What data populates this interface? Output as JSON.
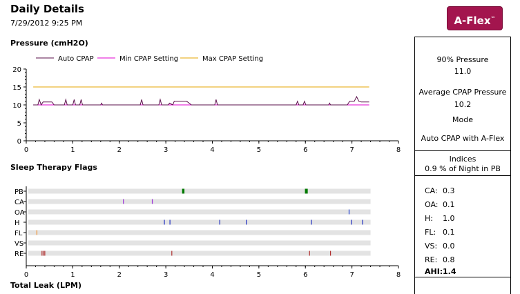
{
  "header": {
    "title": "Daily Details",
    "datetime": "7/29/2012 9:25 PM",
    "logo_text": "A-Flex",
    "logo_mark": "™",
    "logo_color": "#a3154e"
  },
  "sections": {
    "pressure_label": "Pressure (cmH2O)",
    "flags_label": "Sleep Therapy Flags",
    "leak_label": "Total Leak (LPM)"
  },
  "right_panel": {
    "p90_label": "90% Pressure",
    "p90_value": "11.0",
    "avg_label": "Average CPAP Pressure",
    "avg_value": "10.2",
    "mode_label": "Mode",
    "mode_value": "Auto CPAP with A-Flex",
    "indices_label": "Indices",
    "pb_text": "0.9 % of Night in PB",
    "indices": [
      {
        "label": "CA:",
        "value": "0.3"
      },
      {
        "label": "OA:",
        "value": "0.1"
      },
      {
        "label": "H:",
        "value": "1.0"
      },
      {
        "label": "FL:",
        "value": "0.1"
      },
      {
        "label": "VS:",
        "value": "0.0"
      },
      {
        "label": "RE:",
        "value": "0.8"
      }
    ],
    "ahi_label": "AHI:",
    "ahi_value": "1.4"
  },
  "chart_data": [
    {
      "type": "line",
      "title": "Pressure (cmH2O)",
      "xlim": [
        0,
        8
      ],
      "ylim": [
        0,
        20
      ],
      "x_ticks": [
        "0",
        "1",
        "2",
        "3",
        "4",
        "5",
        "6",
        "7",
        "8"
      ],
      "y_ticks": [
        "0",
        "5",
        "10",
        "15",
        "20"
      ],
      "legend_position": "top-left",
      "series": [
        {
          "name": "Auto CPAP",
          "color": "#5a0f4a",
          "points": [
            [
              0.15,
              10
            ],
            [
              0.25,
              10
            ],
            [
              0.28,
              11.5
            ],
            [
              0.32,
              10
            ],
            [
              0.36,
              10.8
            ],
            [
              0.55,
              10.8
            ],
            [
              0.6,
              10
            ],
            [
              0.82,
              10
            ],
            [
              0.85,
              11.5
            ],
            [
              0.88,
              10
            ],
            [
              1.0,
              10
            ],
            [
              1.03,
              11.5
            ],
            [
              1.06,
              10
            ],
            [
              1.15,
              10
            ],
            [
              1.18,
              11.5
            ],
            [
              1.21,
              10
            ],
            [
              1.6,
              10
            ],
            [
              1.62,
              10.5
            ],
            [
              1.64,
              10
            ],
            [
              2.45,
              10
            ],
            [
              2.48,
              11.5
            ],
            [
              2.51,
              10
            ],
            [
              2.85,
              10
            ],
            [
              2.88,
              11.5
            ],
            [
              2.91,
              10
            ],
            [
              3.05,
              10
            ],
            [
              3.08,
              10.5
            ],
            [
              3.15,
              10
            ],
            [
              3.18,
              11
            ],
            [
              3.45,
              11
            ],
            [
              3.55,
              10
            ],
            [
              4.05,
              10
            ],
            [
              4.08,
              11.5
            ],
            [
              4.11,
              10
            ],
            [
              5.8,
              10
            ],
            [
              5.83,
              11
            ],
            [
              5.86,
              10
            ],
            [
              5.95,
              10
            ],
            [
              5.98,
              11
            ],
            [
              6.01,
              10
            ],
            [
              6.5,
              10
            ],
            [
              6.52,
              10.5
            ],
            [
              6.54,
              10
            ],
            [
              6.9,
              10
            ],
            [
              6.95,
              11
            ],
            [
              7.05,
              11
            ],
            [
              7.1,
              12.3
            ],
            [
              7.15,
              11
            ],
            [
              7.2,
              10.8
            ],
            [
              7.37,
              10.8
            ]
          ]
        },
        {
          "name": "Min CPAP Setting",
          "color": "#e000d0",
          "points": [
            [
              0.15,
              10
            ],
            [
              7.37,
              10
            ]
          ]
        },
        {
          "name": "Max CPAP Setting",
          "color": "#e6a400",
          "points": [
            [
              0.15,
              15
            ],
            [
              7.37,
              15
            ]
          ]
        }
      ]
    },
    {
      "type": "scatter",
      "title": "Sleep Therapy Flags",
      "xlim": [
        0,
        8
      ],
      "x_ticks": [
        "0",
        "1",
        "2",
        "3",
        "4",
        "5",
        "6",
        "7",
        "8"
      ],
      "rows": [
        "PB",
        "CA",
        "OA",
        "H",
        "FL",
        "VS",
        "RE"
      ],
      "events": [
        {
          "row": "PB",
          "x": 3.35,
          "width": 0.05,
          "color": "#007a00"
        },
        {
          "row": "PB",
          "x": 5.99,
          "width": 0.06,
          "color": "#007a00"
        },
        {
          "row": "CA",
          "x": 2.08,
          "color": "#9a2fd6"
        },
        {
          "row": "CA",
          "x": 2.7,
          "color": "#9a2fd6"
        },
        {
          "row": "OA",
          "x": 6.93,
          "color": "#2040d0"
        },
        {
          "row": "H",
          "x": 2.96,
          "color": "#2030c0"
        },
        {
          "row": "H",
          "x": 3.08,
          "color": "#2030c0"
        },
        {
          "row": "H",
          "x": 4.15,
          "color": "#2030c0"
        },
        {
          "row": "H",
          "x": 4.72,
          "color": "#2030c0"
        },
        {
          "row": "H",
          "x": 6.12,
          "color": "#2030c0"
        },
        {
          "row": "H",
          "x": 6.98,
          "color": "#2030c0"
        },
        {
          "row": "H",
          "x": 7.22,
          "color": "#2030c0"
        },
        {
          "row": "FL",
          "x": 0.22,
          "color": "#f09030"
        },
        {
          "row": "RE",
          "x": 0.33,
          "color": "#b03030"
        },
        {
          "row": "RE",
          "x": 0.36,
          "color": "#b03030"
        },
        {
          "row": "RE",
          "x": 0.39,
          "color": "#b03030"
        },
        {
          "row": "RE",
          "x": 3.12,
          "color": "#b03030"
        },
        {
          "row": "RE",
          "x": 6.08,
          "color": "#b03030"
        },
        {
          "row": "RE",
          "x": 6.53,
          "color": "#b03030"
        }
      ]
    }
  ]
}
